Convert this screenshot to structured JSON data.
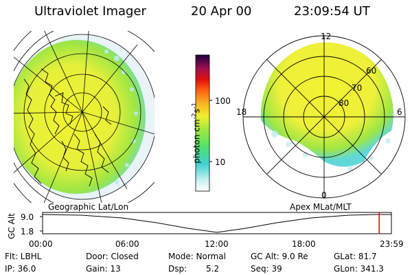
{
  "header": {
    "instrument": "Ultraviolet Imager",
    "date": "20 Apr 00",
    "time": "23:09:54 UT"
  },
  "left_panel": {
    "caption": "Geographic Lat/Lon"
  },
  "right_panel": {
    "caption": "Apex MLat/MLT",
    "lat_labels": [
      "60",
      "70",
      "80"
    ],
    "mlt_labels": [
      "12",
      "18",
      "6",
      "0"
    ]
  },
  "colorbar": {
    "unit_label": "photon cm",
    "unit_sup1": "-2",
    "unit_mid": "s",
    "unit_sup2": "-1",
    "ticks": [
      "100",
      "10"
    ]
  },
  "altitude_plot": {
    "ylabel": "GC Alt",
    "yticks": [
      "9.0",
      "1.8"
    ],
    "xticks": [
      "00:00",
      "06:00",
      "12:00",
      "18:00",
      "23:59"
    ],
    "current_marker_fraction": 0.965
  },
  "status": {
    "flt": "Flt: LBHL",
    "ip": "IP: 36.0",
    "door": "Door: Closed",
    "gain": "Gain: 13",
    "mode": "Mode: Normal",
    "dsp_label": "Dsp:",
    "dsp_value": "5.2",
    "gc_alt": "GC Alt: 9.0 Re",
    "seq": "Seq: 39",
    "glat": "GLat: 81.7",
    "glon": "GLon: 341.3"
  },
  "colors": {
    "auroral_yellow": "#f2f230",
    "auroral_green": "#9ee645",
    "auroral_cyan": "#60d8d8",
    "marker_red": "#e00000"
  }
}
